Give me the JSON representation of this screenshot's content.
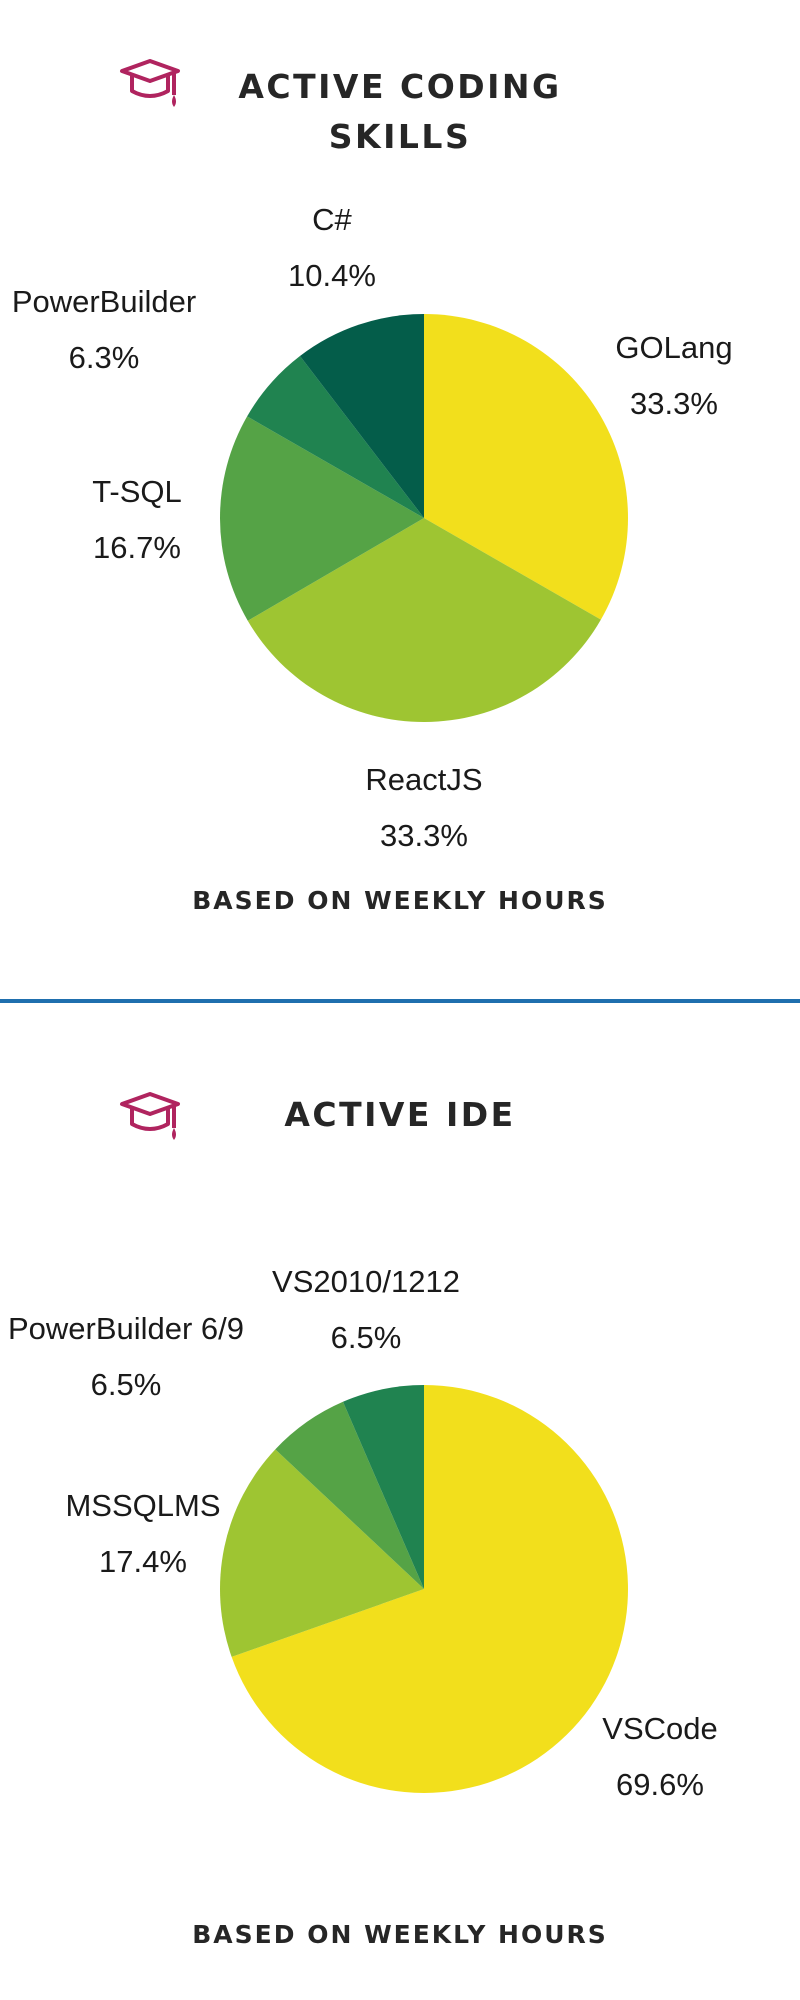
{
  "colors": {
    "title": "#262626",
    "icon": "#b0245f",
    "divider": "#1f6fae"
  },
  "sections": [
    {
      "title": "ACTIVE CODING SKILLS",
      "title_line1": "ACTIVE CODING",
      "title_line2": "SKILLS",
      "icon": "graduation-cap-icon",
      "caption": "BASED ON WEEKLY HOURS"
    },
    {
      "title": "ACTIVE IDE",
      "title_line1": "ACTIVE IDE",
      "title_line2": "",
      "icon": "graduation-cap-icon",
      "caption": "BASED ON WEEKLY HOURS"
    }
  ],
  "chart_data": [
    {
      "type": "pie",
      "title": "ACTIVE CODING SKILLS",
      "subtitle": "BASED ON WEEKLY HOURS",
      "slices": [
        {
          "label": "GOLang",
          "value": 33.3,
          "display": "33.3%",
          "color": "#f2df1c"
        },
        {
          "label": "ReactJS",
          "value": 33.3,
          "display": "33.3%",
          "color": "#9ec532"
        },
        {
          "label": "T-SQL",
          "value": 16.7,
          "display": "16.7%",
          "color": "#55a346"
        },
        {
          "label": "PowerBuilder",
          "value": 6.3,
          "display": "6.3%",
          "color": "#208350"
        },
        {
          "label": "C#",
          "value": 10.4,
          "display": "10.4%",
          "color": "#045d4a"
        }
      ]
    },
    {
      "type": "pie",
      "title": "ACTIVE IDE",
      "subtitle": "BASED ON WEEKLY HOURS",
      "slices": [
        {
          "label": "VSCode",
          "value": 69.6,
          "display": "69.6%",
          "color": "#f2df1c"
        },
        {
          "label": "MSSQLMS",
          "value": 17.4,
          "display": "17.4%",
          "color": "#9ec532"
        },
        {
          "label": "PowerBuilder 6/9",
          "value": 6.5,
          "display": "6.5%",
          "color": "#55a346"
        },
        {
          "label": "VS2010/1212",
          "value": 6.5,
          "display": "6.5%",
          "color": "#208350"
        }
      ]
    }
  ]
}
